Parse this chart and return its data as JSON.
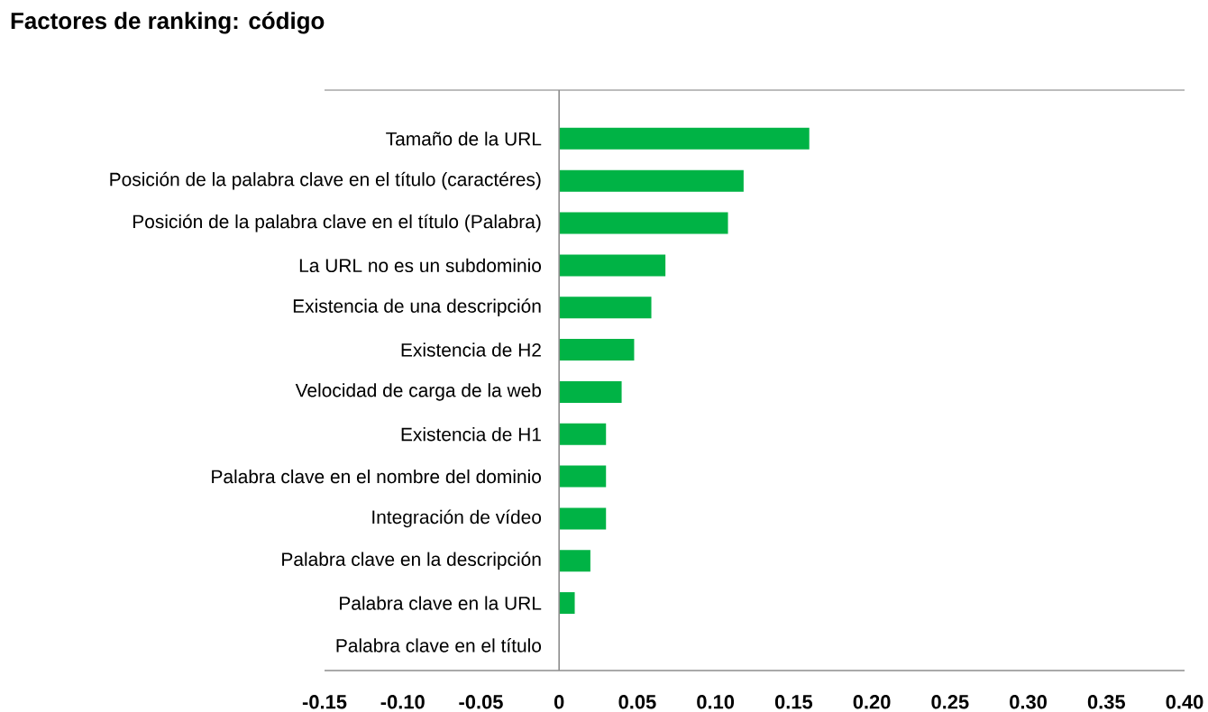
{
  "chart_data": {
    "type": "bar",
    "orientation": "horizontal",
    "title": "Factores de ranking: código",
    "categories": [
      "Tamaño de la URL",
      "Posición de la palabra clave en el título (caractéres)",
      "Posición de la palabra clave en el título (Palabra)",
      "La URL no es un subdominio",
      "Existencia de una descripción",
      "Existencia de H2",
      "Velocidad de carga de la web",
      "Existencia de H1",
      "Palabra clave en el nombre del dominio",
      "Integración de vídeo",
      "Palabra clave en la descripción",
      "Palabra clave en la URL",
      "Palabra clave en el título"
    ],
    "values": [
      0.16,
      0.118,
      0.108,
      0.068,
      0.059,
      0.048,
      0.04,
      0.03,
      0.03,
      0.03,
      0.02,
      0.01,
      0
    ],
    "color": "#00b345",
    "xlim": [
      -0.15,
      0.4
    ],
    "xticks": [
      {
        "value": -0.15,
        "label": "-0.15"
      },
      {
        "value": -0.1,
        "label": "-0.10"
      },
      {
        "value": -0.05,
        "label": "-0.05"
      },
      0,
      {
        "value": 0.05,
        "label": "0.05"
      },
      {
        "value": 0.1,
        "label": "0.10"
      },
      {
        "value": 0.15,
        "label": "0.15"
      },
      {
        "value": 0.2,
        "label": "0.20"
      },
      {
        "value": 0.25,
        "label": "0.25"
      },
      {
        "value": 0.3,
        "label": "0.30"
      },
      {
        "value": 0.35,
        "label": "0.35"
      },
      {
        "value": 0.4,
        "label": "0.40"
      }
    ]
  }
}
